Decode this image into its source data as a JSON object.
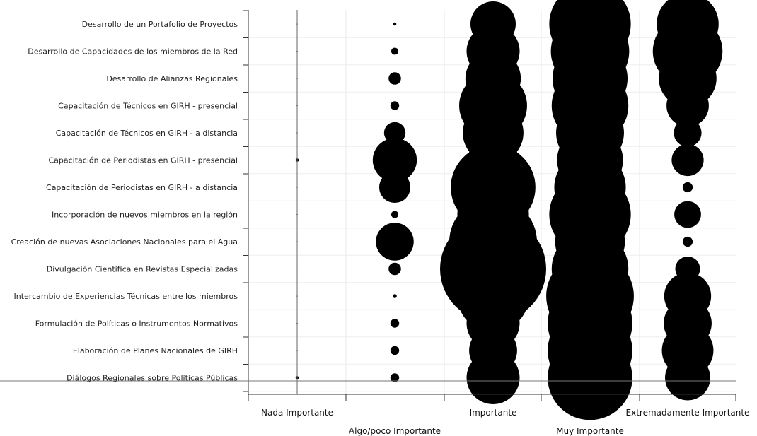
{
  "chart_data": {
    "type": "scatter",
    "categories_x": [
      "Nada Importante",
      "Algo/poco Importante",
      "Importante",
      "Muy Importante",
      "Extremadamente Importante"
    ],
    "categories_y": [
      "Desarrollo de un Portafolio de Proyectos",
      "Desarrollo de Capacidades de los miembros de la Red",
      "Desarrollo de Alianzas Regionales",
      "Capacitación de Técnicos en GIRH - presencial",
      "Capacitación de Técnicos en GIRH - a distancia",
      "Capacitación de Periodistas en GIRH - presencial",
      "Capacitación de Periodistas en GIRH - a distancia",
      "Incorporación de nuevos miembros en la región",
      "Creación de nuevas Asociaciones Nacionales para el Agua",
      "Divulgación Científica en Revistas Especializadas",
      "Intercambio de Experiencias Técnicas entre los miembros",
      "Formulación de Políticas o Instrumentos Normativos",
      "Elaboración de Planes Nacionales de GIRH",
      "Diálogos Regionales sobre Políticas Públicas"
    ],
    "series": [
      {
        "values": [
          0,
          0,
          0,
          0,
          0,
          0.2,
          0,
          0,
          0,
          0,
          0,
          0,
          0,
          0.2
        ]
      },
      {
        "values": [
          0.2,
          1,
          3,
          1.5,
          9,
          38,
          19,
          1,
          28,
          3,
          0.3,
          1.5,
          1.5,
          1.5
        ]
      },
      {
        "values": [
          40,
          55,
          60,
          90,
          72,
          50,
          140,
          100,
          150,
          220,
          100,
          55,
          45,
          55
        ]
      },
      {
        "values": [
          130,
          120,
          110,
          115,
          90,
          85,
          100,
          130,
          95,
          115,
          150,
          140,
          140,
          140
        ]
      },
      {
        "values": [
          75,
          95,
          65,
          35,
          15,
          20,
          2,
          14,
          2,
          12,
          43,
          45,
          52,
          40
        ]
      }
    ]
  },
  "xaxis": {
    "row1": [
      "Nada Importante",
      "Importante",
      "Extremadamente Importante"
    ],
    "row2": [
      "Algo/poco Importante",
      "Muy Importante"
    ]
  }
}
